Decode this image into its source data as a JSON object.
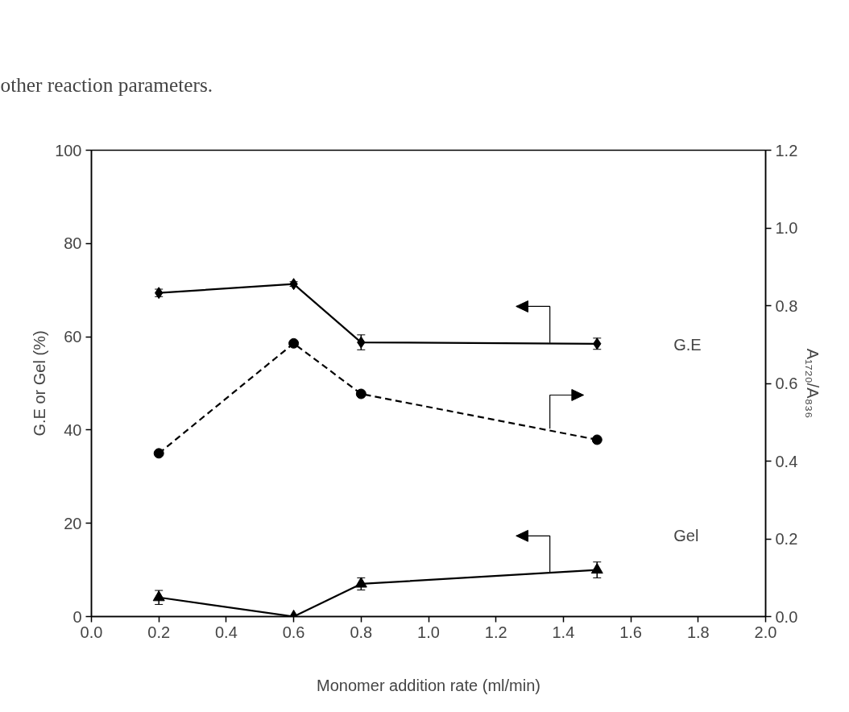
{
  "chart_data": {
    "type": "line",
    "xlabel": "Monomer addition rate (ml/min)",
    "ylabel": "G.E or Gel (%)",
    "y2label": "A₁₇₂₀/A₈₃₆",
    "annotations": [
      "other reaction parameters."
    ],
    "x": [
      0.2,
      0.6,
      0.8,
      1.5
    ],
    "series": [
      {
        "name": "G.E",
        "color": "#000000",
        "marker": "diamond",
        "line_style": "solid",
        "values": [
          69.4,
          71.3,
          58.8,
          58.5
        ],
        "errors": [
          0.8,
          0.5,
          1.6,
          1.2
        ]
      },
      {
        "color": "#000000",
        "marker": "circle",
        "line_style": "dashed",
        "axis": "y2",
        "values": [
          0.42,
          0.703,
          0.573,
          0.455
        ]
      },
      {
        "name": "Gel",
        "color": "#000000",
        "marker": "triangle",
        "line_style": "solid",
        "values": [
          4.1,
          0,
          7.0,
          10.0
        ],
        "errors": [
          1.5,
          null,
          1.3,
          1.7
        ]
      }
    ],
    "xlim": [
      0,
      2
    ],
    "xticks": [
      {
        "value": 0,
        "label": "0.0"
      },
      {
        "value": 0.2,
        "label": "0.2"
      },
      {
        "value": 0.4,
        "label": "0.4"
      },
      {
        "value": 0.6,
        "label": "0.6"
      },
      {
        "value": 0.8,
        "label": "0.8"
      },
      {
        "value": 1,
        "label": "1.0"
      },
      {
        "value": 1.2,
        "label": "1.2"
      },
      {
        "value": 1.4,
        "label": "1.4"
      },
      {
        "value": 1.6,
        "label": "1.6"
      },
      {
        "value": 1.8,
        "label": "1.8"
      },
      {
        "value": 2,
        "label": "2.0"
      }
    ],
    "ylim": [
      0,
      100
    ],
    "yticks": [
      0,
      20,
      40,
      60,
      80,
      100
    ],
    "y2lim": [
      0,
      1.2
    ],
    "y2ticks": [
      {
        "value": 0,
        "label": "0.0"
      },
      {
        "value": 0.2,
        "label": "0.2"
      },
      {
        "value": 0.4,
        "label": "0.4"
      },
      {
        "value": 0.6,
        "label": "0.6"
      },
      {
        "value": 0.8,
        "label": "0.8"
      },
      {
        "value": 1,
        "label": "1.0"
      },
      {
        "value": 1.2,
        "label": "1.2"
      }
    ],
    "grid": false
  }
}
